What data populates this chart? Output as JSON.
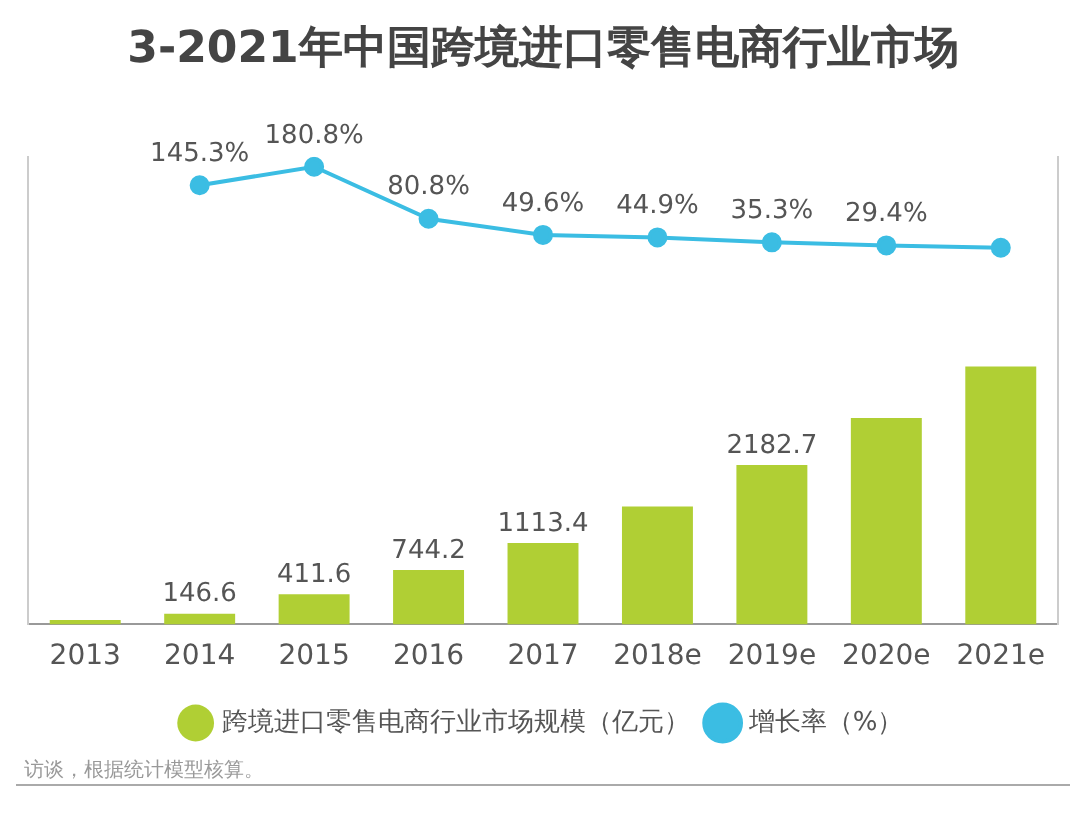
{
  "chart_data": {
    "type": "bar",
    "title": "3-2021年中国跨境进口零售电商行业市场",
    "categories": [
      "2013",
      "2014",
      "2015",
      "2016",
      "2017",
      "2018e",
      "2019e",
      "2020e",
      "2021e"
    ],
    "series": [
      {
        "name": "跨境进口零售电商行业市场规模（亿元）",
        "color": "#b0cf34",
        "values": [
          59.8,
          146.6,
          411.6,
          744.2,
          1113.4,
          1613.3,
          2182.7,
          2824.4,
          3530.0
        ],
        "value_labels": [
          null,
          "146.6",
          "411.6",
          "744.2",
          "1113.4",
          null,
          "2182.7",
          null,
          null
        ]
      },
      {
        "name": "增长率（%）",
        "type": "line",
        "axis": "y2",
        "color": "#3bbde3",
        "values": [
          null,
          145.3,
          180.8,
          80.8,
          49.6,
          44.9,
          35.3,
          29.4,
          25.0
        ],
        "value_labels": [
          null,
          "145.3%",
          "180.8%",
          "80.8%",
          "49.6%",
          "44.9%",
          "35.3%",
          "29.4%",
          null
        ]
      }
    ],
    "ylim": [
      0,
      6400
    ],
    "y2lim": [
      -700,
      200
    ],
    "tick_labels": "x",
    "annotations": [
      "访谈，根据统计模型核算。"
    ],
    "legend": "bottom",
    "grid": false,
    "marker": "circle"
  }
}
